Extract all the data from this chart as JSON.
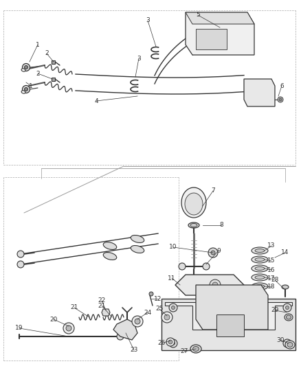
{
  "bg_color": "#ffffff",
  "line_color": "#333333",
  "label_color": "#333333",
  "fig_width": 4.38,
  "fig_height": 5.33,
  "dpi": 100
}
